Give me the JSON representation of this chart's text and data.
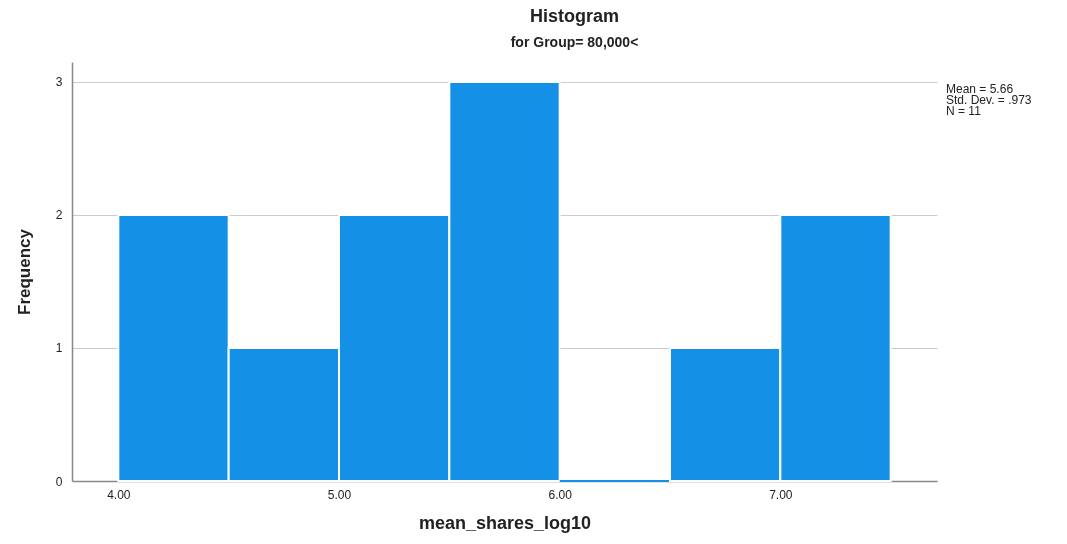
{
  "chart_data": {
    "type": "histogram",
    "title": "Histogram",
    "subtitle": "for Group= 80,000<",
    "xlabel": "mean_shares_log10",
    "ylabel": "Frequency",
    "bins": [
      4.0,
      4.5,
      5.0,
      5.5,
      6.0,
      6.5,
      7.0,
      7.5
    ],
    "values": [
      2,
      1,
      2,
      3,
      0,
      1,
      2
    ],
    "color": "#1490e6",
    "xlim": [
      3.79,
      7.71
    ],
    "ylim": [
      0,
      3.15
    ],
    "xticks": [
      {
        "value": 4,
        "label": "4.00"
      },
      {
        "value": 5,
        "label": "5.00"
      },
      {
        "value": 6,
        "label": "6.00"
      },
      {
        "value": 7,
        "label": "7.00"
      }
    ],
    "yticks": [
      0,
      1,
      2,
      3
    ],
    "grid": "y",
    "annotations": [
      "Mean = 5.66",
      "Std. Dev. = .973",
      "N = 11"
    ]
  }
}
